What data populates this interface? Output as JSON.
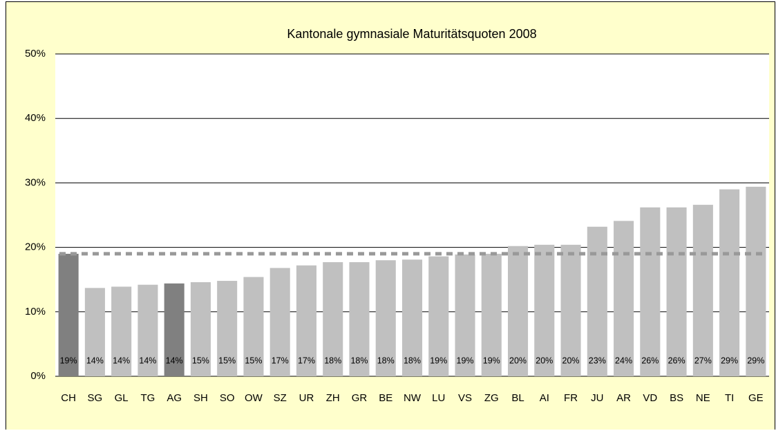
{
  "chart_data": {
    "type": "bar",
    "title": "Kantonale gymnasiale Maturitätsquoten 2008",
    "categories": [
      "CH",
      "SG",
      "GL",
      "TG",
      "AG",
      "SH",
      "SO",
      "OW",
      "SZ",
      "UR",
      "ZH",
      "GR",
      "BE",
      "NW",
      "LU",
      "VS",
      "ZG",
      "BL",
      "AI",
      "FR",
      "JU",
      "AR",
      "VD",
      "BS",
      "NE",
      "TI",
      "GE"
    ],
    "values": [
      19.0,
      13.7,
      13.9,
      14.2,
      14.4,
      14.6,
      14.8,
      15.4,
      16.8,
      17.2,
      17.7,
      17.7,
      18.0,
      18.1,
      18.6,
      18.9,
      19.0,
      20.2,
      20.4,
      20.4,
      23.2,
      24.1,
      26.2,
      26.2,
      26.6,
      29.0,
      29.4
    ],
    "value_labels": [
      "19%",
      "14%",
      "14%",
      "14%",
      "14%",
      "15%",
      "15%",
      "15%",
      "17%",
      "17%",
      "18%",
      "18%",
      "18%",
      "18%",
      "19%",
      "19%",
      "19%",
      "20%",
      "20%",
      "20%",
      "23%",
      "24%",
      "26%",
      "26%",
      "27%",
      "29%",
      "29%"
    ],
    "colors": [
      "#808080",
      "#c0c0c0",
      "#c0c0c0",
      "#c0c0c0",
      "#808080",
      "#c0c0c0",
      "#c0c0c0",
      "#c0c0c0",
      "#c0c0c0",
      "#c0c0c0",
      "#c0c0c0",
      "#c0c0c0",
      "#c0c0c0",
      "#c0c0c0",
      "#c0c0c0",
      "#c0c0c0",
      "#c0c0c0",
      "#c0c0c0",
      "#c0c0c0",
      "#c0c0c0",
      "#c0c0c0",
      "#c0c0c0",
      "#c0c0c0",
      "#c0c0c0",
      "#c0c0c0",
      "#c0c0c0",
      "#c0c0c0"
    ],
    "reference_line": 19.0,
    "reference_color": "#999999",
    "ylim": [
      0,
      50
    ],
    "yticks": [
      {
        "value": 0,
        "label": "0%"
      },
      {
        "value": 10,
        "label": "10%"
      },
      {
        "value": 20,
        "label": "20%"
      },
      {
        "value": 30,
        "label": "30%"
      },
      {
        "value": 40,
        "label": "40%"
      },
      {
        "value": 50,
        "label": "50%"
      }
    ],
    "grid": true
  }
}
